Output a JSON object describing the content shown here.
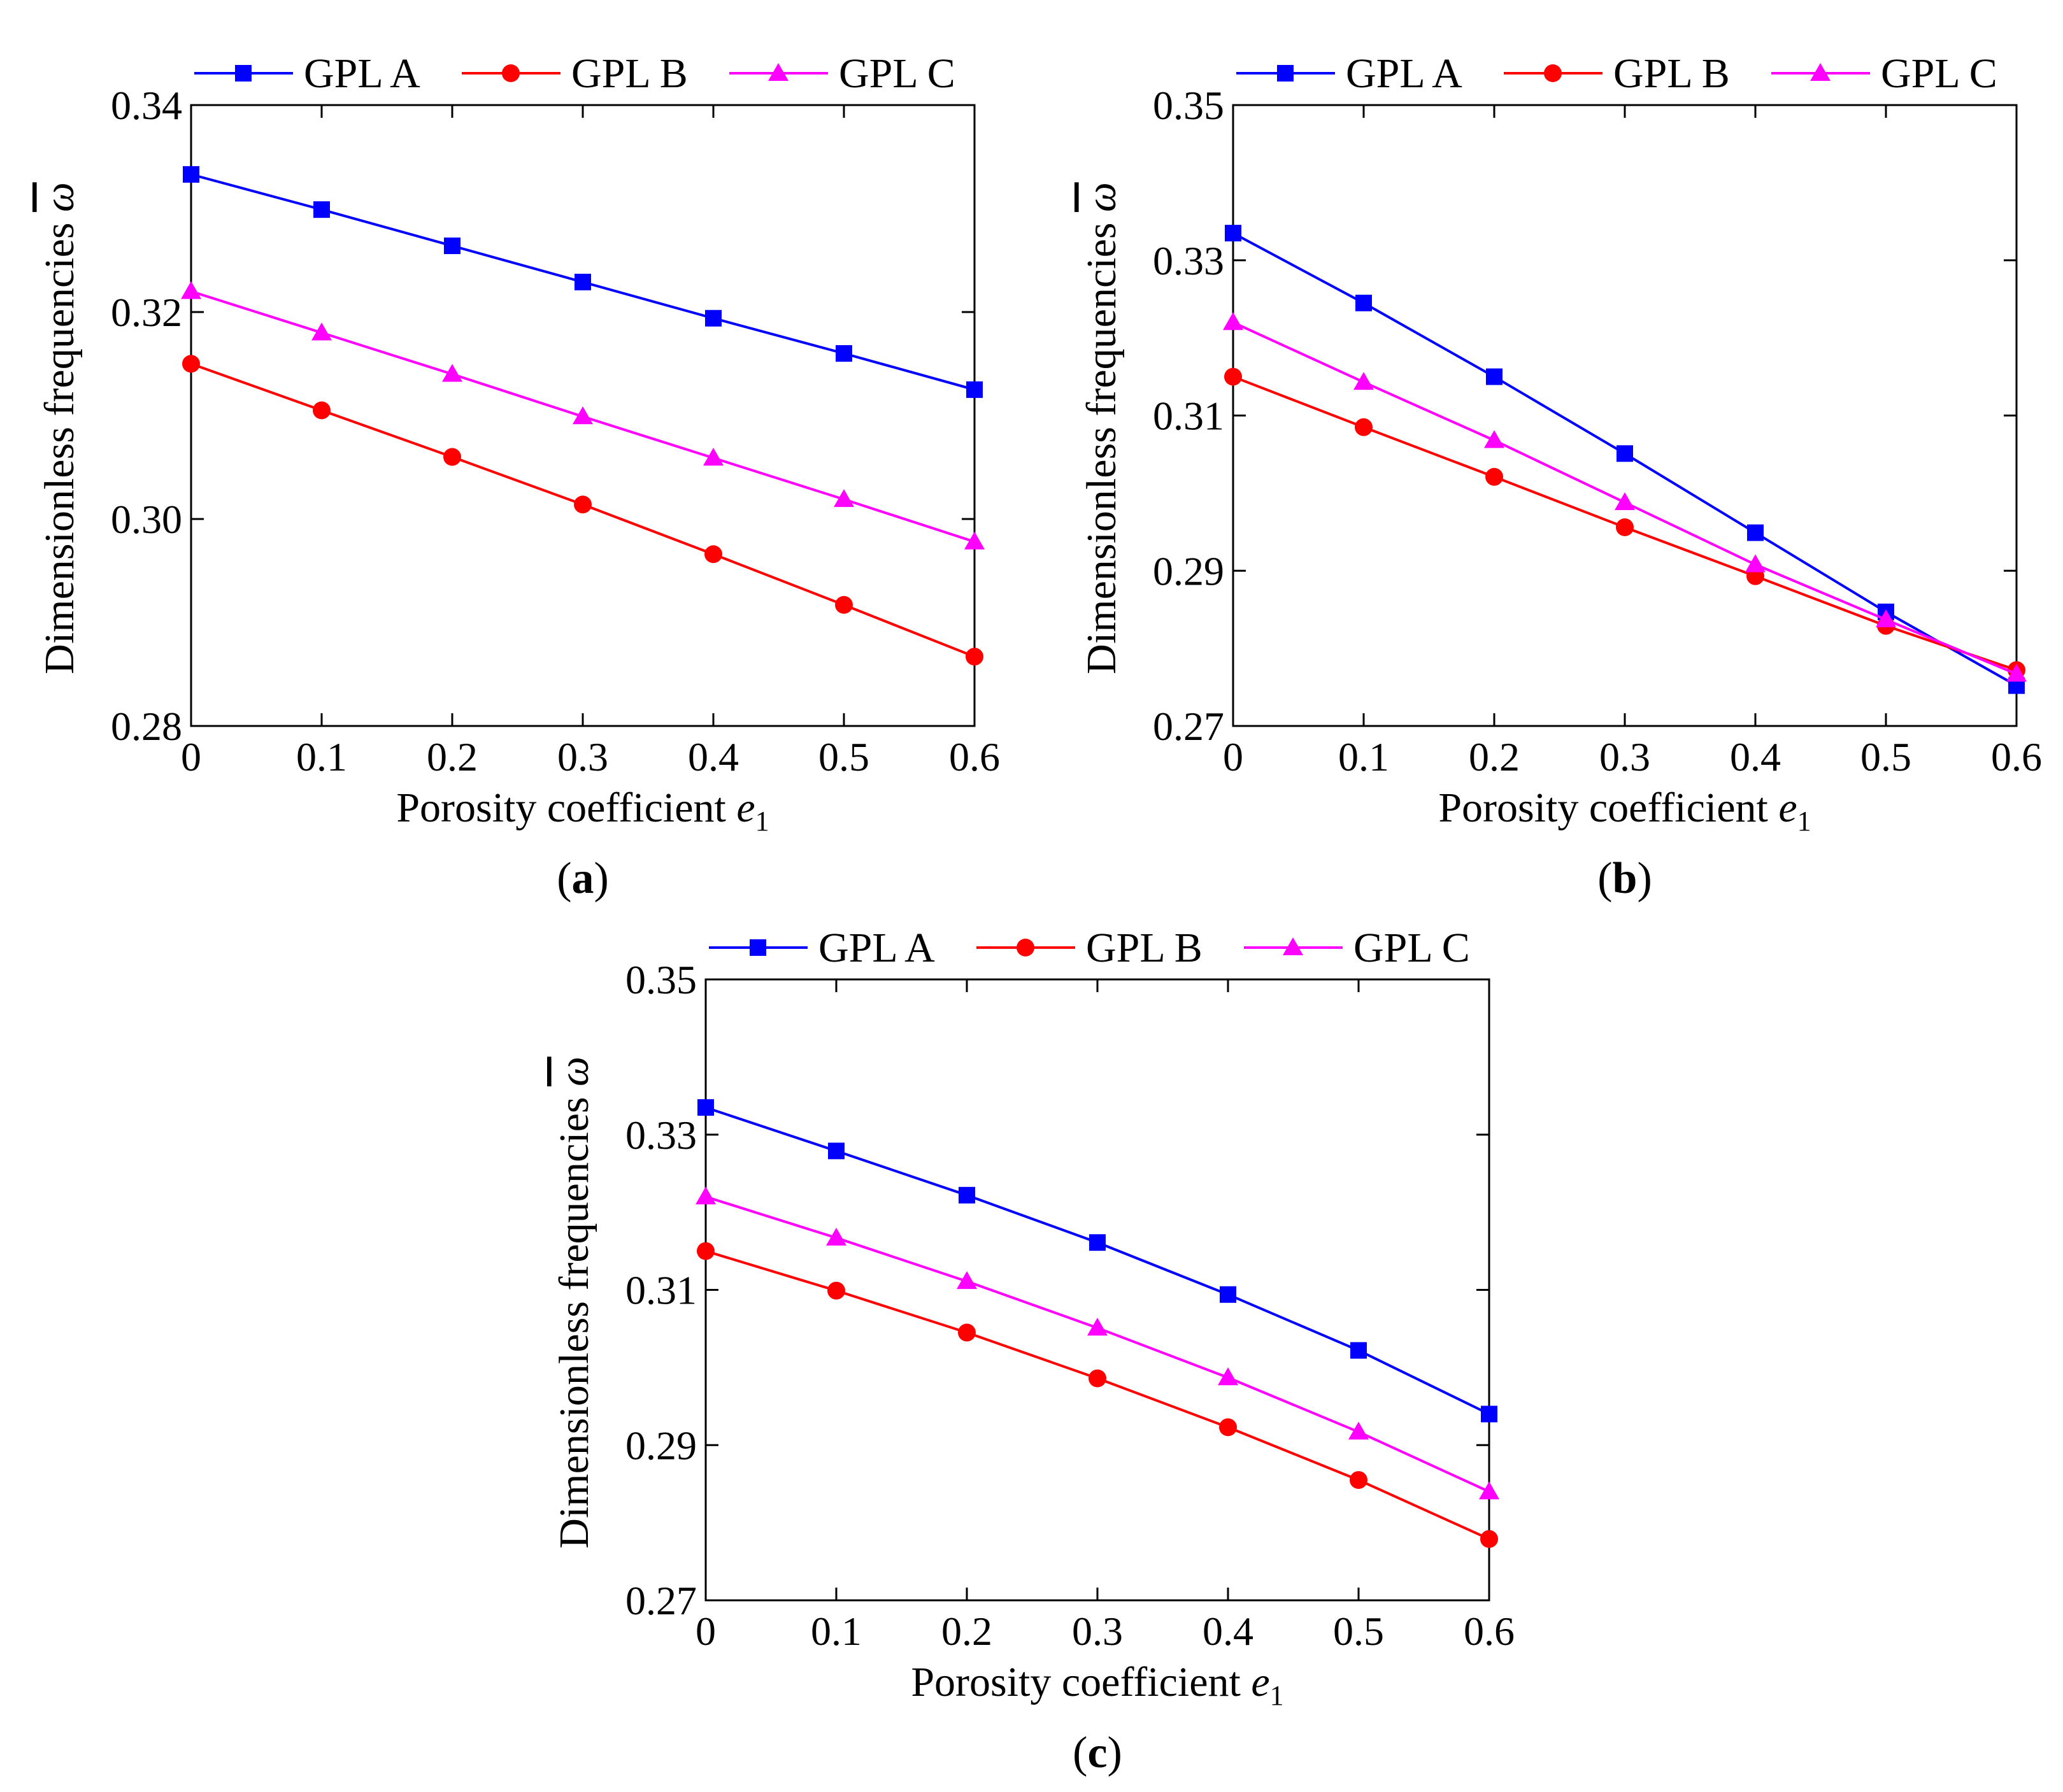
{
  "chart_data": [
    {
      "type": "line",
      "panel_label": "a",
      "xlabel": "Porosity coefficient",
      "xlabel_symbol": "e",
      "xlabel_subscript": "1",
      "ylabel": "Dimensionless frequencies",
      "ylabel_symbol": "ω",
      "x": [
        0,
        0.1,
        0.2,
        0.3,
        0.4,
        0.5,
        0.6
      ],
      "x_tick_labels": [
        "0",
        "0.1",
        "0.2",
        "0.3",
        "0.4",
        "0.5",
        "0.6"
      ],
      "xlim": [
        0,
        0.6
      ],
      "ylim": [
        0.28,
        0.34
      ],
      "y_ticks": [
        0.28,
        0.3,
        0.32,
        0.34
      ],
      "y_tick_labels": [
        "0.28",
        "0.30",
        "0.32",
        "0.34"
      ],
      "legend_position": "top",
      "series": [
        {
          "name": "GPL A",
          "color": "#0000ff",
          "marker": "square",
          "values": [
            0.3333,
            0.3299,
            0.3264,
            0.3229,
            0.3194,
            0.316,
            0.3125
          ]
        },
        {
          "name": "GPL B",
          "color": "#ff0000",
          "marker": "circle",
          "values": [
            0.315,
            0.3105,
            0.306,
            0.3014,
            0.2966,
            0.2917,
            0.2867
          ]
        },
        {
          "name": "GPL C",
          "color": "#ff00ff",
          "marker": "triangle",
          "values": [
            0.322,
            0.318,
            0.314,
            0.3099,
            0.3059,
            0.3019,
            0.2978
          ]
        }
      ]
    },
    {
      "type": "line",
      "panel_label": "b",
      "xlabel": "Porosity coefficient",
      "xlabel_symbol": "e",
      "xlabel_subscript": "1",
      "ylabel": "Dimensionless frequencies",
      "ylabel_symbol": "ω",
      "x": [
        0,
        0.1,
        0.2,
        0.3,
        0.4,
        0.5,
        0.6
      ],
      "x_tick_labels": [
        "0",
        "0.1",
        "0.2",
        "0.3",
        "0.4",
        "0.5",
        "0.6"
      ],
      "xlim": [
        0,
        0.6
      ],
      "ylim": [
        0.27,
        0.35
      ],
      "y_ticks": [
        0.27,
        0.29,
        0.31,
        0.33,
        0.35
      ],
      "y_tick_labels": [
        "0.27",
        "0.29",
        "0.31",
        "0.33",
        "0.35"
      ],
      "legend_position": "top",
      "series": [
        {
          "name": "GPL A",
          "color": "#0000ff",
          "marker": "square",
          "values": [
            0.3335,
            0.3245,
            0.315,
            0.3051,
            0.2949,
            0.2847,
            0.2752
          ]
        },
        {
          "name": "GPL B",
          "color": "#ff0000",
          "marker": "circle",
          "values": [
            0.315,
            0.3085,
            0.3021,
            0.2956,
            0.2893,
            0.2829,
            0.2772
          ]
        },
        {
          "name": "GPL C",
          "color": "#ff00ff",
          "marker": "triangle",
          "values": [
            0.322,
            0.3143,
            0.3068,
            0.2988,
            0.2908,
            0.2837,
            0.2767
          ]
        }
      ]
    },
    {
      "type": "line",
      "panel_label": "c",
      "xlabel": "Porosity coefficient",
      "xlabel_symbol": "e",
      "xlabel_subscript": "1",
      "ylabel": "Dimensionless frequencies",
      "ylabel_symbol": "ω",
      "x": [
        0,
        0.1,
        0.2,
        0.3,
        0.4,
        0.5,
        0.6
      ],
      "x_tick_labels": [
        "0",
        "0.1",
        "0.2",
        "0.3",
        "0.4",
        "0.5",
        "0.6"
      ],
      "xlim": [
        0,
        0.6
      ],
      "ylim": [
        0.27,
        0.35
      ],
      "y_ticks": [
        0.27,
        0.29,
        0.31,
        0.33,
        0.35
      ],
      "y_tick_labels": [
        "0.27",
        "0.29",
        "0.31",
        "0.33",
        "0.35"
      ],
      "legend_position": "top",
      "series": [
        {
          "name": "GPL A",
          "color": "#0000ff",
          "marker": "square",
          "values": [
            0.3335,
            0.3279,
            0.3222,
            0.3161,
            0.3094,
            0.3022,
            0.294
          ]
        },
        {
          "name": "GPL B",
          "color": "#ff0000",
          "marker": "circle",
          "values": [
            0.315,
            0.3099,
            0.3045,
            0.2986,
            0.2923,
            0.2855,
            0.2779
          ]
        },
        {
          "name": "GPL C",
          "color": "#ff00ff",
          "marker": "triangle",
          "values": [
            0.322,
            0.3167,
            0.3111,
            0.3051,
            0.2987,
            0.2917,
            0.284
          ]
        }
      ]
    }
  ]
}
